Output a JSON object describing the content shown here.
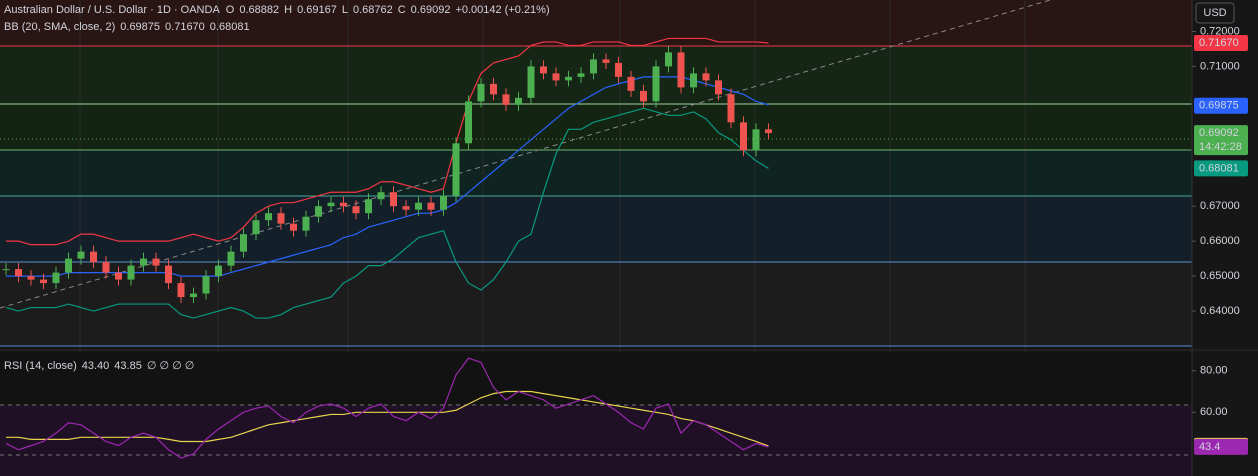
{
  "header": {
    "symbol": "Australian Dollar / U.S. Dollar · 1D · OANDA",
    "o_label": "O",
    "open": "0.68882",
    "h_label": "H",
    "high": "0.69167",
    "l_label": "L",
    "low": "0.68762",
    "c_label": "C",
    "close": "0.69092",
    "change": "+0.00142 (+0.21%)"
  },
  "bb_legend": {
    "label": "BB (20, SMA, close, 2)",
    "basis": "0.69875",
    "upper": "0.71670",
    "lower": "0.68081"
  },
  "rsi_legend": {
    "label": "RSI (14, close)",
    "rsi": "43.40",
    "ma": "43.85",
    "extras": "∅ ∅ ∅ ∅"
  },
  "currency": "USD",
  "countdown": "14:42:28",
  "price_axis": {
    "ylim": [
      0.63,
      0.729
    ],
    "yticks": [
      {
        "value": 0.72,
        "label": "0.72000"
      },
      {
        "value": 0.71,
        "label": "0.71000"
      },
      {
        "value": 0.67,
        "label": "0.67000"
      },
      {
        "value": 0.66,
        "label": "0.66000"
      },
      {
        "value": 0.65,
        "label": "0.65000"
      },
      {
        "value": 0.64,
        "label": "0.64000"
      }
    ],
    "badges": [
      {
        "value": 0.7167,
        "label": "0.71670",
        "color": "#f23645"
      },
      {
        "value": 0.69875,
        "label": "0.69875",
        "color": "#2962ff"
      },
      {
        "value": 0.69092,
        "label": "0.69092",
        "color": "#4caf50"
      },
      {
        "value": 0.68081,
        "label": "0.68081",
        "color": "#089981"
      }
    ]
  },
  "candles": {
    "up_color": "#4caf50",
    "down_color": "#ef5350",
    "close": [
      0.652,
      0.65,
      0.649,
      0.648,
      0.651,
      0.655,
      0.657,
      0.654,
      0.651,
      0.649,
      0.653,
      0.655,
      0.653,
      0.648,
      0.644,
      0.645,
      0.65,
      0.653,
      0.657,
      0.662,
      0.666,
      0.668,
      0.665,
      0.663,
      0.667,
      0.67,
      0.671,
      0.67,
      0.668,
      0.672,
      0.674,
      0.67,
      0.669,
      0.671,
      0.669,
      0.673,
      0.688,
      0.7,
      0.705,
      0.702,
      0.699,
      0.701,
      0.71,
      0.708,
      0.706,
      0.707,
      0.708,
      0.712,
      0.711,
      0.707,
      0.703,
      0.7,
      0.71,
      0.714,
      0.704,
      0.708,
      0.706,
      0.702,
      0.694,
      0.686,
      0.692,
      0.69092
    ]
  },
  "bollinger": {
    "basis_color": "#2962ff",
    "upper_color": "#f23645",
    "lower_color": "#089981",
    "basis": [
      0.65,
      0.65,
      0.65,
      0.65,
      0.65,
      0.651,
      0.651,
      0.651,
      0.651,
      0.651,
      0.651,
      0.651,
      0.651,
      0.651,
      0.65,
      0.65,
      0.65,
      0.65,
      0.651,
      0.652,
      0.653,
      0.654,
      0.655,
      0.656,
      0.657,
      0.658,
      0.659,
      0.661,
      0.662,
      0.664,
      0.665,
      0.666,
      0.667,
      0.668,
      0.668,
      0.669,
      0.671,
      0.674,
      0.677,
      0.68,
      0.683,
      0.686,
      0.689,
      0.692,
      0.695,
      0.698,
      0.7,
      0.702,
      0.704,
      0.705,
      0.706,
      0.707,
      0.707,
      0.707,
      0.707,
      0.706,
      0.705,
      0.704,
      0.703,
      0.702,
      0.7,
      0.699
    ],
    "upper": [
      0.66,
      0.66,
      0.659,
      0.659,
      0.659,
      0.66,
      0.662,
      0.662,
      0.661,
      0.66,
      0.66,
      0.66,
      0.66,
      0.66,
      0.661,
      0.662,
      0.661,
      0.66,
      0.661,
      0.664,
      0.668,
      0.67,
      0.671,
      0.671,
      0.672,
      0.673,
      0.674,
      0.674,
      0.674,
      0.675,
      0.677,
      0.677,
      0.676,
      0.675,
      0.674,
      0.675,
      0.688,
      0.7,
      0.708,
      0.711,
      0.712,
      0.713,
      0.716,
      0.717,
      0.717,
      0.716,
      0.716,
      0.717,
      0.717,
      0.717,
      0.716,
      0.716,
      0.717,
      0.718,
      0.718,
      0.718,
      0.718,
      0.717,
      0.717,
      0.717,
      0.717,
      0.7167
    ],
    "lower": [
      0.641,
      0.64,
      0.641,
      0.641,
      0.641,
      0.642,
      0.641,
      0.64,
      0.641,
      0.642,
      0.642,
      0.642,
      0.642,
      0.642,
      0.639,
      0.638,
      0.639,
      0.64,
      0.641,
      0.64,
      0.638,
      0.638,
      0.639,
      0.641,
      0.642,
      0.643,
      0.644,
      0.648,
      0.65,
      0.653,
      0.653,
      0.655,
      0.658,
      0.661,
      0.662,
      0.663,
      0.654,
      0.648,
      0.646,
      0.649,
      0.654,
      0.66,
      0.662,
      0.674,
      0.685,
      0.692,
      0.692,
      0.694,
      0.695,
      0.696,
      0.697,
      0.698,
      0.697,
      0.696,
      0.696,
      0.697,
      0.695,
      0.691,
      0.689,
      0.686,
      0.683,
      0.68081
    ]
  },
  "rsi": {
    "color": "#9c27b0",
    "ma_color": "#e8d44d",
    "ylim": [
      29.4,
      89
    ],
    "yticks": [
      {
        "value": 80,
        "label": "80.00"
      },
      {
        "value": 60,
        "label": "60.00"
      }
    ],
    "badges": [
      {
        "value": 43.85,
        "color": "#e8d44d"
      },
      {
        "value": 43.4,
        "color": "#9c27b0"
      }
    ],
    "values": [
      45,
      42,
      44,
      46,
      50,
      55,
      54,
      50,
      46,
      44,
      48,
      50,
      48,
      42,
      38,
      40,
      47,
      52,
      56,
      60,
      62,
      63,
      58,
      55,
      60,
      63,
      64,
      62,
      58,
      62,
      64,
      58,
      56,
      60,
      57,
      62,
      78,
      86,
      84,
      72,
      66,
      70,
      68,
      66,
      62,
      64,
      66,
      68,
      64,
      60,
      55,
      52,
      62,
      64,
      50,
      56,
      54,
      50,
      46,
      42,
      45,
      43.4
    ],
    "ma": [
      48,
      48,
      47,
      47,
      47,
      47,
      48,
      48,
      48,
      48,
      48,
      48,
      48,
      47,
      46,
      46,
      46,
      47,
      48,
      50,
      52,
      54,
      55,
      56,
      57,
      58,
      59,
      59,
      60,
      60,
      60,
      60,
      60,
      60,
      60,
      60,
      61,
      64,
      67,
      69,
      70,
      70,
      70,
      69,
      68,
      67,
      66,
      65,
      64,
      63,
      62,
      61,
      60,
      59,
      57,
      56,
      54,
      52,
      50,
      48,
      46,
      43.85
    ]
  }
}
